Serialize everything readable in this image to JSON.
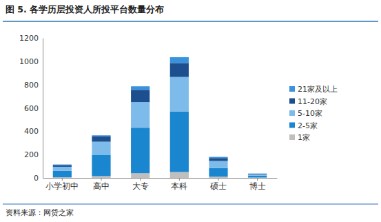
{
  "chart_data": {
    "type": "bar",
    "title": "图 5. 各学历层投资人所投平台数量分布",
    "source": "资料来源：网贷之家",
    "categories": [
      "小学初中",
      "高中",
      "大专",
      "本科",
      "硕士",
      "博士"
    ],
    "stacked": true,
    "legend": "right",
    "grid": false,
    "ylim": [
      0,
      1200
    ],
    "yticks": [
      0,
      200,
      400,
      600,
      800,
      1000,
      1200
    ],
    "series": [
      {
        "name": "1家",
        "color": "#bfbfbf",
        "values": [
          5,
          15,
          40,
          50,
          10,
          3
        ]
      },
      {
        "name": "2-5家",
        "color": "#1a86d0",
        "values": [
          55,
          180,
          390,
          520,
          75,
          17
        ]
      },
      {
        "name": "5-10家",
        "color": "#7cbbea",
        "values": [
          35,
          115,
          220,
          295,
          60,
          10
        ]
      },
      {
        "name": "11-20家",
        "color": "#1d4f8f",
        "values": [
          15,
          45,
          105,
          120,
          25,
          5
        ]
      },
      {
        "name": "21家及以上",
        "color": "#3b92dc",
        "values": [
          5,
          10,
          30,
          50,
          10,
          2
        ]
      }
    ]
  }
}
